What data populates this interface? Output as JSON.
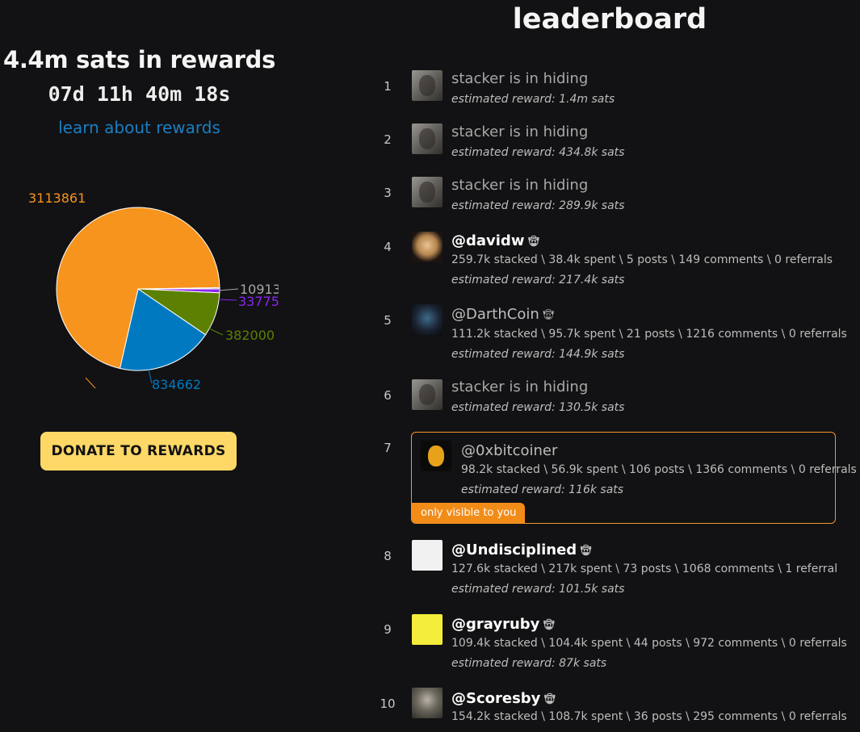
{
  "summary": {
    "total": "4.4m sats in rewards",
    "countdown": "07d 11h 40m 18s",
    "learn_link": "learn about rewards",
    "donate_button": "DONATE TO REWARDS"
  },
  "chart_data": {
    "type": "pie",
    "values": [
      3113861,
      834662,
      382000,
      33775,
      10913
    ],
    "labels": [
      "3113861",
      "834662",
      "382000",
      "33775",
      "10913"
    ],
    "colors": [
      "#f7941d",
      "#0079c1",
      "#5c8001",
      "#8c25f4",
      "#a5a5a5"
    ]
  },
  "leaderboard": {
    "title": "leaderboard",
    "own_badge": "only visible to you",
    "entries": [
      {
        "rank": "1",
        "name": "stacker is in hiding",
        "stats": "",
        "reward": "estimated reward: 1.4m sats",
        "avatar": "hidden-stacker-avatar"
      },
      {
        "rank": "2",
        "name": "stacker is in hiding",
        "stats": "",
        "reward": "estimated reward: 434.8k sats",
        "avatar": "hidden-stacker-avatar"
      },
      {
        "rank": "3",
        "name": "stacker is in hiding",
        "stats": "",
        "reward": "estimated reward: 289.9k sats",
        "avatar": "hidden-stacker-avatar"
      },
      {
        "rank": "4",
        "name": "@davidw",
        "stats": "259.7k stacked \\ 38.4k spent \\ 5 posts \\ 149 comments \\ 0 referrals",
        "reward": "estimated reward: 217.4k sats",
        "avatar": "user-avatar"
      },
      {
        "rank": "5",
        "name": "@DarthCoin",
        "stats": "111.2k stacked \\ 95.7k spent \\ 21 posts \\ 1216 comments \\ 0 referrals",
        "reward": "estimated reward: 144.9k sats",
        "avatar": "user-avatar"
      },
      {
        "rank": "6",
        "name": "stacker is in hiding",
        "stats": "",
        "reward": "estimated reward: 130.5k sats",
        "avatar": "hidden-stacker-avatar"
      },
      {
        "rank": "7",
        "name": "@0xbitcoiner",
        "stats": "98.2k stacked \\ 56.9k spent \\ 106 posts \\ 1366 comments \\ 0 referrals",
        "reward": "estimated reward: 116k sats",
        "avatar": "user-avatar"
      },
      {
        "rank": "8",
        "name": "@Undisciplined",
        "stats": "127.6k stacked \\ 217k spent \\ 73 posts \\ 1068 comments \\ 1 referral",
        "reward": "estimated reward: 101.5k sats",
        "avatar": "user-avatar"
      },
      {
        "rank": "9",
        "name": "@grayruby",
        "stats": "109.4k stacked \\ 104.4k spent \\ 44 posts \\ 972 comments \\ 0 referrals",
        "reward": "estimated reward: 87k sats",
        "avatar": "user-avatar"
      },
      {
        "rank": "10",
        "name": "@Scoresby",
        "stats": "154.2k stacked \\ 108.7k spent \\ 36 posts \\ 295 comments \\ 0 referrals",
        "reward": "",
        "avatar": "user-avatar"
      }
    ]
  }
}
